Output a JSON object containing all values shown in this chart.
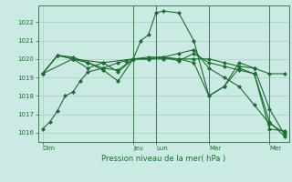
{
  "background_color": "#cceae4",
  "grid_color": "#99ccbb",
  "line_color": "#1a6e2e",
  "marker_color": "#1a6e2e",
  "xlabel": "Pression niveau de la mer( hPa )",
  "ylim": [
    1015.5,
    1022.9
  ],
  "yticks": [
    1016,
    1017,
    1018,
    1019,
    1020,
    1021,
    1022
  ],
  "day_labels": [
    "Dim",
    "Jeu",
    "Lun",
    "Mar",
    "Mer"
  ],
  "day_positions": [
    0,
    6,
    7.5,
    11,
    15
  ],
  "lines": [
    {
      "x": [
        0,
        0.5,
        1,
        1.5,
        2,
        2.5,
        3,
        4,
        5,
        5.5,
        6,
        6.5,
        7,
        7.5,
        8,
        9,
        10,
        11,
        12,
        13,
        14,
        15,
        16
      ],
      "y": [
        1016.2,
        1016.6,
        1017.2,
        1018.0,
        1018.2,
        1018.8,
        1019.3,
        1019.5,
        1019.8,
        1019.9,
        1020.0,
        1021.0,
        1021.3,
        1022.5,
        1022.6,
        1022.5,
        1021.0,
        1018.0,
        1018.5,
        1019.5,
        1019.2,
        1016.2,
        1016.1
      ]
    },
    {
      "x": [
        0,
        1,
        2,
        3,
        4,
        5,
        6,
        7,
        8,
        9,
        10,
        11,
        12,
        13,
        14,
        15,
        16
      ],
      "y": [
        1019.2,
        1020.2,
        1020.0,
        1019.8,
        1019.5,
        1019.4,
        1020.0,
        1020.0,
        1020.0,
        1020.0,
        1020.0,
        1020.0,
        1019.8,
        1019.6,
        1019.5,
        1019.2,
        1019.2
      ]
    },
    {
      "x": [
        0,
        1,
        2,
        3,
        4,
        5,
        6,
        7,
        8,
        9,
        10,
        11,
        12,
        13,
        14,
        15,
        16
      ],
      "y": [
        1019.2,
        1020.2,
        1020.1,
        1019.8,
        1019.4,
        1018.8,
        1020.0,
        1020.1,
        1020.1,
        1020.0,
        1019.8,
        1018.0,
        1018.5,
        1019.8,
        1019.5,
        1017.3,
        1015.9
      ]
    },
    {
      "x": [
        0,
        2,
        4,
        6,
        7,
        8,
        9,
        10,
        11,
        12,
        13,
        14,
        15,
        16
      ],
      "y": [
        1019.2,
        1020.0,
        1019.8,
        1020.0,
        1020.0,
        1020.1,
        1019.9,
        1020.3,
        1019.8,
        1019.6,
        1019.4,
        1019.2,
        1016.6,
        1015.8
      ]
    },
    {
      "x": [
        0,
        1,
        2,
        3,
        4,
        5,
        6,
        7,
        8,
        9,
        10,
        11,
        12,
        13,
        14,
        15,
        16
      ],
      "y": [
        1019.2,
        1020.2,
        1020.0,
        1019.5,
        1019.8,
        1019.3,
        1020.0,
        1020.0,
        1020.1,
        1020.3,
        1020.5,
        1019.5,
        1019.0,
        1018.5,
        1017.5,
        1016.5,
        1016.0
      ]
    }
  ],
  "vline_positions": [
    6,
    7.5,
    11,
    15
  ],
  "xlim": [
    -0.3,
    16.3
  ]
}
